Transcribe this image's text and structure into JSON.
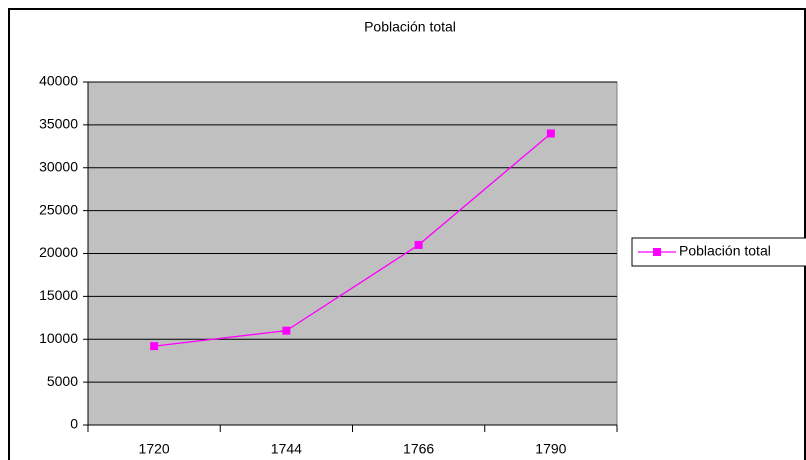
{
  "chart_data": {
    "type": "line",
    "title": "Población total",
    "categories": [
      "1720",
      "1744",
      "1766",
      "1790"
    ],
    "series": [
      {
        "name": "Población total",
        "color": "#ff00ff",
        "values": [
          9200,
          11000,
          21000,
          34000
        ]
      }
    ],
    "ylim": [
      0,
      40000
    ],
    "yticks": [
      0,
      5000,
      10000,
      15000,
      20000,
      25000,
      30000,
      35000,
      40000
    ],
    "grid": true,
    "legend": "right",
    "plot_background": "#c0c0c0"
  }
}
